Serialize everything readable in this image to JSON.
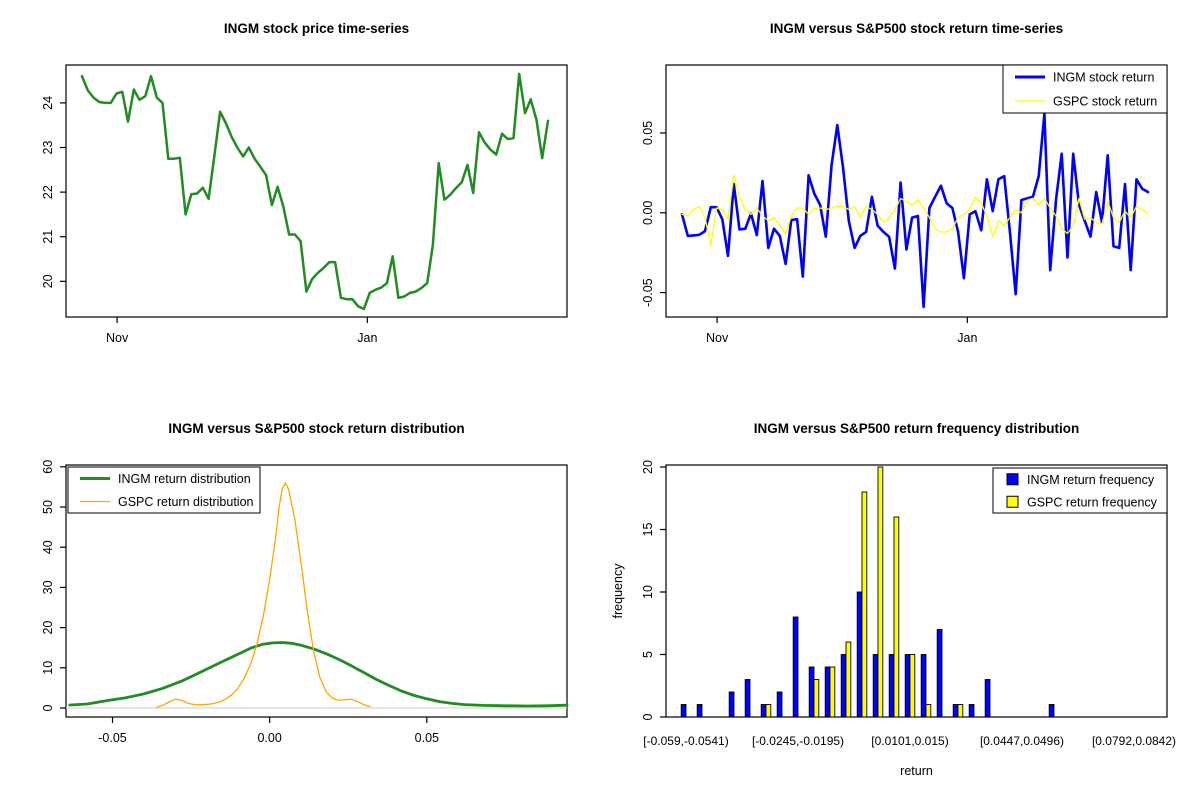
{
  "figure": {
    "background": "#ffffff",
    "axis_color": "#000000",
    "text_color": "#000000"
  },
  "chart_data": [
    {
      "id": "price",
      "type": "line",
      "title": "INGM stock price time-series",
      "xlabel": "",
      "ylabel": "",
      "x_ticks": [
        {
          "pos": 6.1,
          "label": "Nov"
        },
        {
          "pos": 49.6,
          "label": "Jan"
        }
      ],
      "y_ticks": [
        {
          "v": 20,
          "label": "20"
        },
        {
          "v": 21,
          "label": "21"
        },
        {
          "v": 22,
          "label": "22"
        },
        {
          "v": 23,
          "label": "23"
        },
        {
          "v": 24,
          "label": "24"
        }
      ],
      "y_range": [
        19.2,
        24.85
      ],
      "series": [
        {
          "name": "INGM stock price",
          "color": "#228B22",
          "width": 2.5,
          "values": [
            24.6,
            24.28,
            24.12,
            24.02,
            24.0,
            24.0,
            24.21,
            24.25,
            23.58,
            24.3,
            24.07,
            24.15,
            24.6,
            24.12,
            24.0,
            22.75,
            22.75,
            22.77,
            21.5,
            21.95,
            21.97,
            22.1,
            21.85,
            22.8,
            23.8,
            23.55,
            23.24,
            23.0,
            22.8,
            23.0,
            22.75,
            22.57,
            22.38,
            21.71,
            22.12,
            21.67,
            21.05,
            21.05,
            20.9,
            19.77,
            20.05,
            20.19,
            20.3,
            20.43,
            20.43,
            19.63,
            19.6,
            19.6,
            19.44,
            19.38,
            19.74,
            19.81,
            19.86,
            19.96,
            20.56,
            19.63,
            19.66,
            19.74,
            19.77,
            19.85,
            19.96,
            20.82,
            22.65,
            21.83,
            21.94,
            22.09,
            22.22,
            22.61,
            21.98,
            23.34,
            23.11,
            22.95,
            22.84,
            23.31,
            23.19,
            23.21,
            24.65,
            23.77,
            24.08,
            23.62,
            22.76,
            23.6
          ]
        }
      ]
    },
    {
      "id": "returns",
      "type": "line",
      "title": "INGM versus S&P500 stock return time-series",
      "xlabel": "",
      "ylabel": "",
      "x_ticks": [
        {
          "pos": 6.1,
          "label": "Nov"
        },
        {
          "pos": 49.6,
          "label": "Jan"
        }
      ],
      "y_ticks": [
        {
          "v": -0.05,
          "label": "-0.05"
        },
        {
          "v": 0.0,
          "label": "0.00"
        },
        {
          "v": 0.05,
          "label": "0.05"
        }
      ],
      "y_range": [
        -0.0653,
        0.0926
      ],
      "legend": {
        "position": "topright",
        "items": [
          {
            "label": "INGM stock return",
            "swatch": "line",
            "color": "#0000FF",
            "lw": 3
          },
          {
            "label": "GSPC stock return",
            "swatch": "line",
            "color": "#FFFF00",
            "lw": 1.3
          }
        ]
      },
      "series": [
        {
          "name": "INGM stock return",
          "color": "#0000FF",
          "width": 2.6,
          "values": [
            -0.001,
            -0.0145,
            -0.0142,
            -0.0138,
            -0.0115,
            0.0035,
            0.0035,
            -0.004,
            -0.027,
            0.018,
            -0.0105,
            -0.01,
            -0.0005,
            -0.014,
            0.02,
            -0.022,
            -0.01,
            -0.0145,
            -0.032,
            -0.0045,
            -0.004,
            -0.04,
            0.0235,
            0.012,
            0.005,
            -0.015,
            0.03,
            0.055,
            0.028,
            -0.005,
            -0.022,
            -0.0145,
            -0.012,
            0.01,
            -0.008,
            -0.012,
            -0.015,
            -0.035,
            0.019,
            -0.023,
            -0.003,
            -0.002,
            -0.059,
            0.003,
            0.01,
            0.017,
            0.006,
            0.003,
            -0.012,
            -0.041,
            -0.001,
            0.001,
            -0.011,
            0.021,
            0.001,
            0.021,
            0.023,
            -0.012,
            -0.051,
            0.008,
            0.009,
            0.01,
            0.023,
            0.062,
            -0.036,
            0.008,
            0.037,
            -0.028,
            0.037,
            0.005,
            -0.005,
            -0.015,
            0.013,
            -0.006,
            0.036,
            -0.021,
            -0.022,
            0.018,
            -0.036,
            0.021,
            0.015,
            0.013
          ]
        },
        {
          "name": "GSPC stock return",
          "color": "#FFFF00",
          "width": 1.3,
          "values": [
            -0.001,
            -0.002,
            0.002,
            0.004,
            -0.003,
            -0.02,
            0.003,
            0.002,
            -0.004,
            0.0235,
            0.01,
            0.002,
            -0.001,
            0.003,
            -0.002,
            -0.005,
            -0.003,
            -0.008,
            -0.013,
            -0.002,
            0.003,
            0.003,
            -0.001,
            0.003,
            0.003,
            0.002,
            0.003,
            0.004,
            0.004,
            0.002,
            0.004,
            -0.003,
            0.004,
            0.002,
            -0.001,
            -0.006,
            -0.003,
            0.002,
            0.009,
            0.007,
            0.005,
            0.008,
            0.003,
            -0.003,
            -0.01,
            -0.012,
            -0.012,
            -0.01,
            -0.003,
            -0.001,
            0.002,
            0.01,
            0.006,
            -0.002,
            -0.015,
            -0.005,
            -0.008,
            -0.003,
            0.002,
            0.0,
            0.008,
            0.009,
            0.005,
            0.009,
            0.003,
            -0.002,
            -0.01,
            -0.013,
            -0.008,
            0.009,
            -0.004,
            -0.003,
            -0.006,
            -0.007,
            0.007,
            -0.003,
            -0.006,
            0.001,
            -0.003,
            0.004,
            0.002,
            0.0
          ]
        }
      ]
    },
    {
      "id": "density",
      "type": "density",
      "title": "INGM versus S&P500 stock return distribution",
      "xlabel": "",
      "ylabel": "",
      "x_range": [
        -0.0648,
        0.0946
      ],
      "y_range": [
        -2.24,
        60.45
      ],
      "x_ticks": [
        {
          "v": -0.05,
          "label": "-0.05"
        },
        {
          "v": 0.0,
          "label": "0.00"
        },
        {
          "v": 0.05,
          "label": "0.05"
        }
      ],
      "y_ticks": [
        {
          "v": 0,
          "label": "0"
        },
        {
          "v": 10,
          "label": "10"
        },
        {
          "v": 20,
          "label": "20"
        },
        {
          "v": 30,
          "label": "30"
        },
        {
          "v": 40,
          "label": "40"
        },
        {
          "v": 50,
          "label": "50"
        },
        {
          "v": 60,
          "label": "60"
        }
      ],
      "zero_line_color": "#D8D8D8",
      "legend": {
        "position": "topleft",
        "items": [
          {
            "label": "INGM return distribution",
            "swatch": "line",
            "color": "#228B22",
            "lw": 3
          },
          {
            "label": "GSPC return distribution",
            "swatch": "line",
            "color": "#FFA500",
            "lw": 1.3
          }
        ]
      },
      "series": [
        {
          "name": "INGM return distribution",
          "color": "#228B22",
          "width": 2.8,
          "points": [
            [
              -0.0636,
              0.75
            ],
            [
              -0.058,
              1.0
            ],
            [
              -0.052,
              1.8
            ],
            [
              -0.046,
              2.5
            ],
            [
              -0.04,
              3.5
            ],
            [
              -0.034,
              4.9
            ],
            [
              -0.028,
              6.7
            ],
            [
              -0.022,
              8.9
            ],
            [
              -0.016,
              11.2
            ],
            [
              -0.01,
              13.4
            ],
            [
              -0.006,
              14.9
            ],
            [
              -0.002,
              15.9
            ],
            [
              0.001,
              16.2
            ],
            [
              0.004,
              16.3
            ],
            [
              0.007,
              16.1
            ],
            [
              0.01,
              15.6
            ],
            [
              0.014,
              14.7
            ],
            [
              0.018,
              13.5
            ],
            [
              0.022,
              12.1
            ],
            [
              0.026,
              10.5
            ],
            [
              0.03,
              8.8
            ],
            [
              0.034,
              7.1
            ],
            [
              0.038,
              5.6
            ],
            [
              0.042,
              4.2
            ],
            [
              0.046,
              3.1
            ],
            [
              0.05,
              2.3
            ],
            [
              0.054,
              1.6
            ],
            [
              0.058,
              1.15
            ],
            [
              0.062,
              0.85
            ],
            [
              0.068,
              0.65
            ],
            [
              0.075,
              0.55
            ],
            [
              0.082,
              0.5
            ],
            [
              0.088,
              0.55
            ],
            [
              0.0946,
              0.7
            ]
          ]
        },
        {
          "name": "GSPC return distribution",
          "color": "#FFA500",
          "width": 1.3,
          "points": [
            [
              -0.036,
              0.15
            ],
            [
              -0.034,
              0.7
            ],
            [
              -0.032,
              1.5
            ],
            [
              -0.03,
              2.2
            ],
            [
              -0.028,
              1.9
            ],
            [
              -0.026,
              1.2
            ],
            [
              -0.024,
              0.85
            ],
            [
              -0.022,
              0.8
            ],
            [
              -0.02,
              0.9
            ],
            [
              -0.018,
              1.1
            ],
            [
              -0.016,
              1.5
            ],
            [
              -0.014,
              2.2
            ],
            [
              -0.012,
              3.3
            ],
            [
              -0.01,
              5.0
            ],
            [
              -0.008,
              7.5
            ],
            [
              -0.006,
              11.0
            ],
            [
              -0.004,
              16.0
            ],
            [
              -0.002,
              23.0
            ],
            [
              0.0,
              32.0
            ],
            [
              0.002,
              43.0
            ],
            [
              0.003,
              50.0
            ],
            [
              0.004,
              54.5
            ],
            [
              0.005,
              56.0
            ],
            [
              0.006,
              54.5
            ],
            [
              0.008,
              47.0
            ],
            [
              0.01,
              36.0
            ],
            [
              0.012,
              24.0
            ],
            [
              0.014,
              14.0
            ],
            [
              0.016,
              7.5
            ],
            [
              0.018,
              4.0
            ],
            [
              0.02,
              2.4
            ],
            [
              0.022,
              1.9
            ],
            [
              0.024,
              2.1
            ],
            [
              0.026,
              2.2
            ],
            [
              0.028,
              1.6
            ],
            [
              0.03,
              0.8
            ],
            [
              0.032,
              0.3
            ]
          ]
        }
      ]
    },
    {
      "id": "hist",
      "type": "bar",
      "title": "INGM versus S&P500 return frequency distribution",
      "xlabel": "return",
      "ylabel": "frequency",
      "y_range": [
        0,
        20.16
      ],
      "y_ticks": [
        {
          "v": 0,
          "label": "0"
        },
        {
          "v": 5,
          "label": "5"
        },
        {
          "v": 10,
          "label": "10"
        },
        {
          "v": 15,
          "label": "15"
        },
        {
          "v": 20,
          "label": "20"
        }
      ],
      "bins": 30,
      "x_ticks": [
        {
          "group": 0,
          "label": "[-0.059,-0.0541)"
        },
        {
          "group": 7,
          "label": "[-0.0245,-0.0195)"
        },
        {
          "group": 14,
          "label": "[0.0101,0.015)"
        },
        {
          "group": 21,
          "label": "[0.0447,0.0496)"
        },
        {
          "group": 28,
          "label": "[0.0792,0.0842)"
        }
      ],
      "legend": {
        "position": "topright",
        "items": [
          {
            "label": "INGM return frequency",
            "swatch": "square",
            "color": "#0000FF"
          },
          {
            "label": "GSPC return frequency",
            "swatch": "square",
            "color": "#FFFF00"
          }
        ]
      },
      "series": [
        {
          "name": "INGM return frequency",
          "color": "#0000FF",
          "values": [
            1,
            1,
            0,
            2,
            3,
            1,
            2,
            8,
            4,
            4,
            5,
            10,
            5,
            5,
            5,
            5,
            7,
            1,
            1,
            3,
            0,
            0,
            0,
            1,
            0,
            0,
            0,
            0,
            0,
            0
          ]
        },
        {
          "name": "GSPC return frequency",
          "color": "#FFFF00",
          "values": [
            0,
            0,
            0,
            0,
            0,
            1,
            0,
            0,
            3,
            4,
            6,
            18,
            20,
            16,
            5,
            1,
            0,
            1,
            0,
            0,
            0,
            0,
            0,
            0,
            0,
            0,
            0,
            0,
            0,
            0
          ]
        }
      ]
    }
  ]
}
